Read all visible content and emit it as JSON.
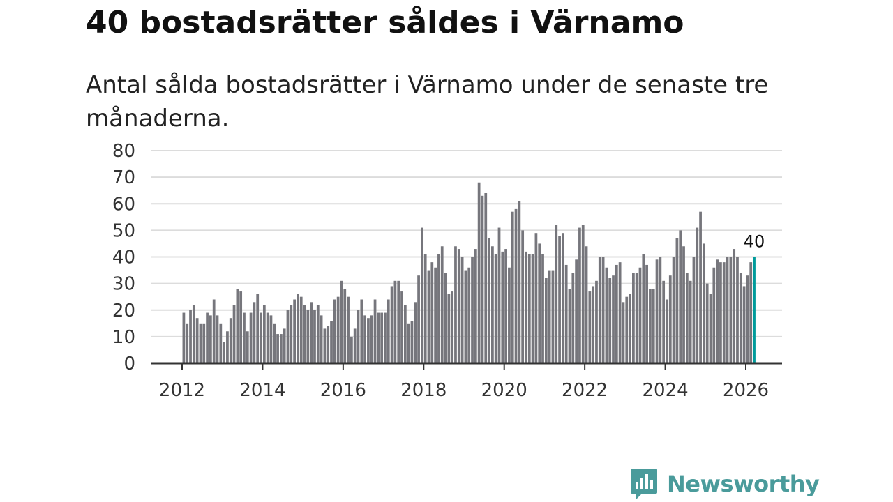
{
  "title": "40 bostadsrätter såldes i Värnamo",
  "subtitle": "Antal sålda bostadsrätter i Värnamo under de senaste tre månaderna.",
  "logo": {
    "name": "Newsworthy",
    "icon": "newsworthy-logo-icon",
    "color": "#4a9b9b"
  },
  "colors": {
    "bar": "#76767c",
    "highlight": "#009b9b",
    "grid": "#dcdcdc",
    "axis": "#333333",
    "tick_text": "#333333"
  },
  "chart_data": {
    "type": "bar",
    "title": "",
    "xlabel": "",
    "ylabel": "",
    "ylim": [
      0,
      80
    ],
    "yticks": [
      "0",
      "10",
      "20",
      "30",
      "40",
      "50",
      "60",
      "70",
      "80"
    ],
    "xticks": [
      "2012",
      "2014",
      "2016",
      "2018",
      "2020",
      "2022",
      "2024",
      "2026"
    ],
    "x_start": "2012-01",
    "highlight_label": "40",
    "values": [
      19,
      15,
      20,
      22,
      17,
      15,
      15,
      19,
      18,
      24,
      18,
      15,
      8,
      12,
      17,
      22,
      28,
      27,
      19,
      12,
      19,
      23,
      26,
      19,
      22,
      19,
      18,
      15,
      11,
      11,
      13,
      20,
      22,
      24,
      26,
      25,
      22,
      20,
      23,
      20,
      22,
      18,
      13,
      14,
      16,
      24,
      25,
      31,
      28,
      25,
      10,
      13,
      20,
      24,
      18,
      17,
      18,
      24,
      19,
      19,
      19,
      24,
      29,
      31,
      31,
      27,
      22,
      15,
      16,
      23,
      33,
      51,
      41,
      35,
      38,
      36,
      41,
      44,
      34,
      26,
      27,
      44,
      43,
      40,
      35,
      36,
      40,
      43,
      68,
      63,
      64,
      47,
      44,
      41,
      51,
      42,
      43,
      36,
      57,
      58,
      61,
      50,
      42,
      41,
      41,
      49,
      45,
      41,
      32,
      35,
      35,
      52,
      48,
      49,
      37,
      28,
      34,
      39,
      51,
      52,
      44,
      27,
      29,
      31,
      40,
      40,
      36,
      32,
      33,
      37,
      38,
      23,
      25,
      26,
      34,
      34,
      36,
      41,
      37,
      28,
      28,
      39,
      40,
      31,
      24,
      33,
      40,
      47,
      50,
      44,
      34,
      31,
      40,
      51,
      57,
      45,
      30,
      26,
      36,
      39,
      38,
      38,
      40,
      40,
      43,
      40,
      34,
      29,
      33,
      38,
      40
    ]
  }
}
